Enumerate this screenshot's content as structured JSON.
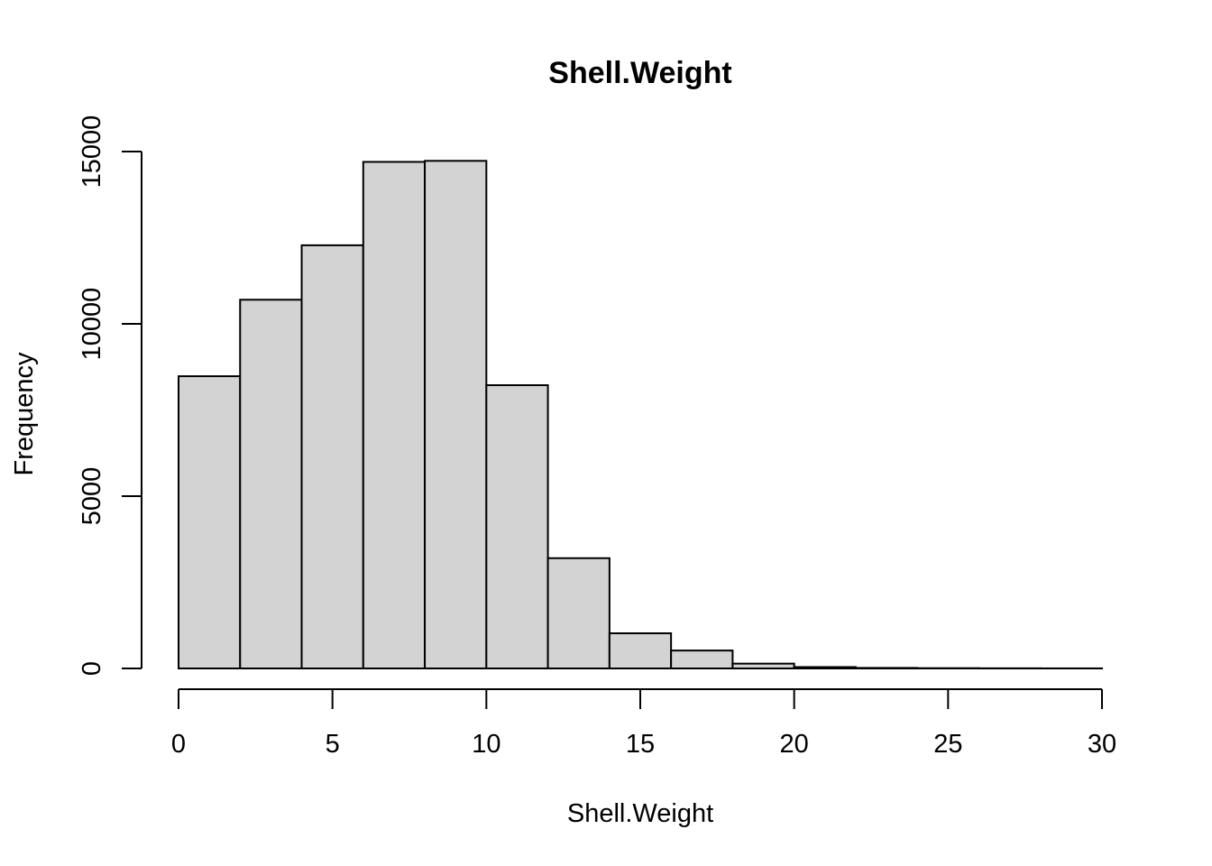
{
  "chart_data": {
    "type": "bar",
    "title": "Shell.Weight",
    "xlabel": "Shell.Weight",
    "ylabel": "Frequency",
    "bin_edges": [
      0,
      2,
      4,
      6,
      8,
      10,
      12,
      14,
      16,
      18,
      20,
      22,
      24,
      26,
      28,
      30
    ],
    "values": [
      8480,
      10700,
      12280,
      14700,
      14730,
      8220,
      3200,
      1020,
      520,
      140,
      40,
      15,
      8,
      4,
      2
    ],
    "xlim": [
      0,
      30
    ],
    "ylim": [
      0,
      15000
    ],
    "xticks": [
      0,
      5,
      10,
      15,
      20,
      25,
      30
    ],
    "yticks": [
      0,
      5000,
      10000,
      15000
    ],
    "grid": false,
    "colors": {
      "bar_fill": "#d3d3d3",
      "bar_stroke": "#000000"
    }
  }
}
